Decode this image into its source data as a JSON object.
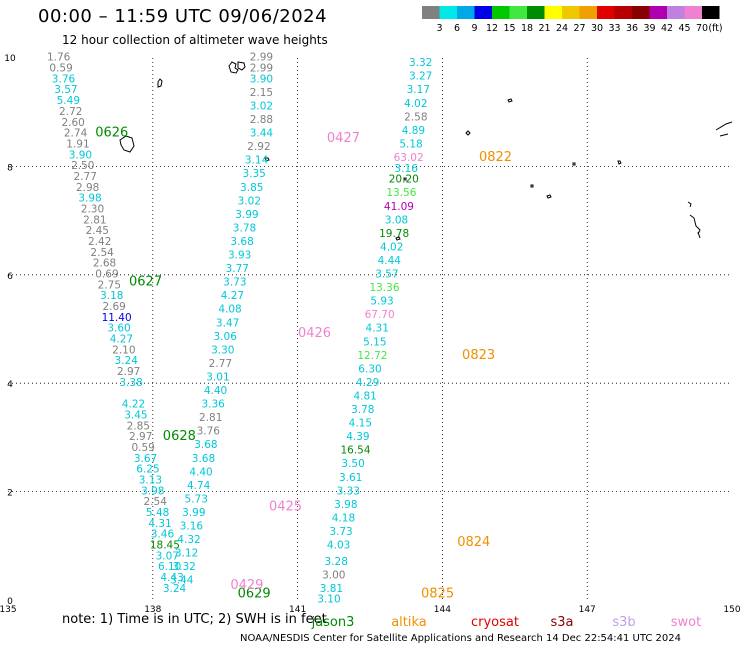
{
  "title": "00:00 – 11:59 UTC 09/06/2024",
  "subtitle": "12 hour collection of altimeter wave heights",
  "colorbar": {
    "colors": [
      "#808080",
      "#00e8e8",
      "#00a8e8",
      "#0000e8",
      "#00c800",
      "#40e840",
      "#008c00",
      "#ffff00",
      "#f0c800",
      "#f0a000",
      "#e00000",
      "#b40000",
      "#880000",
      "#b000b0",
      "#c080e0",
      "#f080d0",
      "#000000"
    ],
    "labels": [
      "3",
      "6",
      "9",
      "12",
      "15",
      "18",
      "21",
      "24",
      "27",
      "30",
      "33",
      "36",
      "39",
      "42",
      "45",
      "70",
      "(ft)"
    ]
  },
  "axes": {
    "x_ticks": [
      "135",
      "138",
      "141",
      "144",
      "147",
      "150"
    ],
    "y_ticks": [
      "0",
      "2",
      "4",
      "6",
      "8",
      "10"
    ]
  },
  "tracks": [
    {
      "date": "0626",
      "color": "#008c00",
      "label_pos": [
        139,
        88.55
      ]
    },
    {
      "date": "0627",
      "color": "#008c00",
      "label_pos": [
        139.3,
        57.8
      ]
    },
    {
      "date": "0628",
      "color": "#008c00",
      "label_pos": [
        140.45,
        37.3
      ]
    },
    {
      "date": "0629",
      "color": "#008c00",
      "label_pos": [
        141.5,
        -0.1
      ]
    },
    {
      "date": "0425",
      "color": "#f080d0",
      "label_pos": [
        140.8,
        52.2
      ]
    },
    {
      "date": "0426",
      "color": "#f080d0",
      "label_pos": [
        141.45,
        39.4
      ]
    },
    {
      "date": "0427",
      "color": "#f080d0",
      "label_pos": [
        141.8,
        26.7
      ]
    },
    {
      "date": "0429",
      "color": "#f080d0",
      "label_pos": [
        140.85,
        0.1
      ]
    },
    {
      "date": "0822",
      "color": "#f09000",
      "label_pos": [
        144.8,
        15.5
      ]
    },
    {
      "date": "0823",
      "color": "#f09000",
      "label_pos": [
        144.6,
        15.45
      ]
    },
    {
      "date": "0824",
      "color": "#f09000",
      "label_pos": [
        144.2,
        2.5
      ]
    },
    {
      "date": "0825",
      "color": "#f09000",
      "label_pos": [
        143.85,
        -0.1
      ]
    }
  ],
  "wave_heights": [
    {
      "v": "1.76",
      "c": "#808080",
      "lon": 136.05,
      "lat": 9.95
    },
    {
      "v": "0.59",
      "c": "#808080",
      "lon": 136.1,
      "lat": 9.75
    },
    {
      "v": "3.76",
      "c": "#00c8d8",
      "lon": 136.15,
      "lat": 9.55
    },
    {
      "v": "3.57",
      "c": "#00c8d8",
      "lon": 136.2,
      "lat": 9.35
    },
    {
      "v": "5.49",
      "c": "#00c8d8",
      "lon": 136.25,
      "lat": 9.15
    },
    {
      "v": "2.72",
      "c": "#808080",
      "lon": 136.3,
      "lat": 8.95
    },
    {
      "v": "2.60",
      "c": "#808080",
      "lon": 136.35,
      "lat": 8.75
    },
    {
      "v": "2.74",
      "c": "#808080",
      "lon": 136.4,
      "lat": 8.55
    },
    {
      "v": "1.91",
      "c": "#808080",
      "lon": 136.45,
      "lat": 8.35
    },
    {
      "v": "3.90",
      "c": "#00c8d8",
      "lon": 136.5,
      "lat": 8.15
    },
    {
      "v": "2.50",
      "c": "#808080",
      "lon": 136.55,
      "lat": 7.95
    },
    {
      "v": "2.77",
      "c": "#808080",
      "lon": 136.6,
      "lat": 7.75
    },
    {
      "v": "2.98",
      "c": "#808080",
      "lon": 136.65,
      "lat": 7.55
    },
    {
      "v": "3.98",
      "c": "#00c8d8",
      "lon": 136.7,
      "lat": 7.35
    },
    {
      "v": "2.30",
      "c": "#808080",
      "lon": 136.75,
      "lat": 7.15
    },
    {
      "v": "2.81",
      "c": "#808080",
      "lon": 136.8,
      "lat": 6.95
    },
    {
      "v": "2.45",
      "c": "#808080",
      "lon": 136.85,
      "lat": 6.75
    },
    {
      "v": "2.42",
      "c": "#808080",
      "lon": 136.9,
      "lat": 6.55
    },
    {
      "v": "2.54",
      "c": "#808080",
      "lon": 136.95,
      "lat": 6.35
    },
    {
      "v": "2.68",
      "c": "#808080",
      "lon": 137.0,
      "lat": 6.15
    },
    {
      "v": "0.69",
      "c": "#808080",
      "lon": 137.05,
      "lat": 5.95
    },
    {
      "v": "2.75",
      "c": "#808080",
      "lon": 137.1,
      "lat": 5.75
    },
    {
      "v": "3.18",
      "c": "#00c8d8",
      "lon": 137.15,
      "lat": 5.55
    },
    {
      "v": "2.69",
      "c": "#808080",
      "lon": 137.2,
      "lat": 5.35
    },
    {
      "v": "11.40",
      "c": "#0000e8",
      "lon": 137.25,
      "lat": 5.15
    },
    {
      "v": "3.60",
      "c": "#00c8d8",
      "lon": 137.3,
      "lat": 4.95
    },
    {
      "v": "4.27",
      "c": "#00c8d8",
      "lon": 137.35,
      "lat": 4.75
    },
    {
      "v": "2.10",
      "c": "#808080",
      "lon": 137.4,
      "lat": 4.55
    },
    {
      "v": "3.24",
      "c": "#00c8d8",
      "lon": 137.45,
      "lat": 4.35
    },
    {
      "v": "2.97",
      "c": "#808080",
      "lon": 137.5,
      "lat": 4.15
    },
    {
      "v": "3.38",
      "c": "#00c8d8",
      "lon": 137.55,
      "lat": 3.95
    },
    {
      "v": "4.22",
      "c": "#00c8d8",
      "lon": 137.6,
      "lat": 3.55
    },
    {
      "v": "3.45",
      "c": "#00c8d8",
      "lon": 137.65,
      "lat": 3.35
    },
    {
      "v": "2.85",
      "c": "#808080",
      "lon": 137.7,
      "lat": 3.15
    },
    {
      "v": "2.97",
      "c": "#808080",
      "lon": 137.75,
      "lat": 2.95
    },
    {
      "v": "0.59",
      "c": "#808080",
      "lon": 137.8,
      "lat": 2.75
    },
    {
      "v": "3.67",
      "c": "#00c8d8",
      "lon": 137.85,
      "lat": 2.55
    },
    {
      "v": "6.25",
      "c": "#00c8d8",
      "lon": 137.9,
      "lat": 2.35
    },
    {
      "v": "3.13",
      "c": "#00c8d8",
      "lon": 137.95,
      "lat": 2.15
    },
    {
      "v": "3.98",
      "c": "#00c8d8",
      "lon": 138.0,
      "lat": 1.95
    },
    {
      "v": "2.54",
      "c": "#808080",
      "lon": 138.05,
      "lat": 1.75
    },
    {
      "v": "5.48",
      "c": "#00c8d8",
      "lon": 138.1,
      "lat": 1.55
    },
    {
      "v": "4.31",
      "c": "#00c8d8",
      "lon": 138.15,
      "lat": 1.35
    },
    {
      "v": "3.46",
      "c": "#00c8d8",
      "lon": 138.2,
      "lat": 1.15
    },
    {
      "v": "18.45",
      "c": "#008c00",
      "lon": 138.25,
      "lat": 0.95
    },
    {
      "v": "3.07",
      "c": "#00c8d8",
      "lon": 138.3,
      "lat": 0.75
    },
    {
      "v": "6.10",
      "c": "#00c8d8",
      "lon": 138.35,
      "lat": 0.55
    },
    {
      "v": "4.43",
      "c": "#00c8d8",
      "lon": 138.4,
      "lat": 0.35
    },
    {
      "v": "3.24",
      "c": "#00c8d8",
      "lon": 138.45,
      "lat": 0.15
    },
    {
      "v": "2.99",
      "c": "#808080",
      "lon": 140.25,
      "lat": 9.95
    },
    {
      "v": "2.99",
      "c": "#808080",
      "lon": 140.25,
      "lat": 9.75
    },
    {
      "v": "3.90",
      "c": "#00c8d8",
      "lon": 140.25,
      "lat": 9.55
    },
    {
      "v": "2.15",
      "c": "#808080",
      "lon": 140.25,
      "lat": 9.3
    },
    {
      "v": "3.02",
      "c": "#00c8d8",
      "lon": 140.25,
      "lat": 9.05
    },
    {
      "v": "2.88",
      "c": "#808080",
      "lon": 140.25,
      "lat": 8.8
    },
    {
      "v": "3.44",
      "c": "#00c8d8",
      "lon": 140.25,
      "lat": 8.55
    },
    {
      "v": "2.92",
      "c": "#808080",
      "lon": 140.2,
      "lat": 8.3
    },
    {
      "v": "3.14",
      "c": "#00c8d8",
      "lon": 140.15,
      "lat": 8.05
    },
    {
      "v": "3.35",
      "c": "#00c8d8",
      "lon": 140.1,
      "lat": 7.8
    },
    {
      "v": "3.85",
      "c": "#00c8d8",
      "lon": 140.05,
      "lat": 7.55
    },
    {
      "v": "3.02",
      "c": "#00c8d8",
      "lon": 140.0,
      "lat": 7.3
    },
    {
      "v": "3.99",
      "c": "#00c8d8",
      "lon": 139.95,
      "lat": 7.05
    },
    {
      "v": "3.78",
      "c": "#00c8d8",
      "lon": 139.9,
      "lat": 6.8
    },
    {
      "v": "3.68",
      "c": "#00c8d8",
      "lon": 139.85,
      "lat": 6.55
    },
    {
      "v": "3.93",
      "c": "#00c8d8",
      "lon": 139.8,
      "lat": 6.3
    },
    {
      "v": "3.77",
      "c": "#00c8d8",
      "lon": 139.75,
      "lat": 6.05
    },
    {
      "v": "3.73",
      "c": "#00c8d8",
      "lon": 139.7,
      "lat": 5.8
    },
    {
      "v": "4.27",
      "c": "#00c8d8",
      "lon": 139.65,
      "lat": 5.55
    },
    {
      "v": "4.08",
      "c": "#00c8d8",
      "lon": 139.6,
      "lat": 5.3
    },
    {
      "v": "3.47",
      "c": "#00c8d8",
      "lon": 139.55,
      "lat": 5.05
    },
    {
      "v": "3.06",
      "c": "#00c8d8",
      "lon": 139.5,
      "lat": 4.8
    },
    {
      "v": "3.30",
      "c": "#00c8d8",
      "lon": 139.45,
      "lat": 4.55
    },
    {
      "v": "2.77",
      "c": "#808080",
      "lon": 139.4,
      "lat": 4.3
    },
    {
      "v": "3.01",
      "c": "#00c8d8",
      "lon": 139.35,
      "lat": 4.05
    },
    {
      "v": "4.40",
      "c": "#00c8d8",
      "lon": 139.3,
      "lat": 3.8
    },
    {
      "v": "3.36",
      "c": "#00c8d8",
      "lon": 139.25,
      "lat": 3.55
    },
    {
      "v": "2.81",
      "c": "#808080",
      "lon": 139.2,
      "lat": 3.3
    },
    {
      "v": "3.76",
      "c": "#808080",
      "lon": 139.15,
      "lat": 3.05
    },
    {
      "v": "3.68",
      "c": "#00c8d8",
      "lon": 139.1,
      "lat": 2.8
    },
    {
      "v": "3.68",
      "c": "#00c8d8",
      "lon": 139.05,
      "lat": 2.55
    },
    {
      "v": "4.40",
      "c": "#00c8d8",
      "lon": 139.0,
      "lat": 2.3
    },
    {
      "v": "4.74",
      "c": "#00c8d8",
      "lon": 138.95,
      "lat": 2.05
    },
    {
      "v": "5.73",
      "c": "#00c8d8",
      "lon": 138.9,
      "lat": 1.8
    },
    {
      "v": "3.99",
      "c": "#00c8d8",
      "lon": 138.85,
      "lat": 1.55
    },
    {
      "v": "3.16",
      "c": "#00c8d8",
      "lon": 138.8,
      "lat": 1.3
    },
    {
      "v": "4.32",
      "c": "#00c8d8",
      "lon": 138.75,
      "lat": 1.05
    },
    {
      "v": "3.12",
      "c": "#00c8d8",
      "lon": 138.7,
      "lat": 0.8
    },
    {
      "v": "3.32",
      "c": "#00c8d8",
      "lon": 138.65,
      "lat": 0.55
    },
    {
      "v": "3.44",
      "c": "#00c8d8",
      "lon": 138.6,
      "lat": 0.3
    },
    {
      "v": "3.32",
      "c": "#00c8d8",
      "lon": 143.55,
      "lat": 9.85
    },
    {
      "v": "3.27",
      "c": "#00c8d8",
      "lon": 143.55,
      "lat": 9.6
    },
    {
      "v": "3.17",
      "c": "#00c8d8",
      "lon": 143.5,
      "lat": 9.35
    },
    {
      "v": "4.02",
      "c": "#00c8d8",
      "lon": 143.45,
      "lat": 9.1
    },
    {
      "v": "2.58",
      "c": "#808080",
      "lon": 143.45,
      "lat": 8.85
    },
    {
      "v": "4.89",
      "c": "#00c8d8",
      "lon": 143.4,
      "lat": 8.6
    },
    {
      "v": "5.18",
      "c": "#00c8d8",
      "lon": 143.35,
      "lat": 8.35
    },
    {
      "v": "63.02",
      "c": "#f080d0",
      "lon": 143.3,
      "lat": 8.1
    },
    {
      "v": "3.16",
      "c": "#00c8d8",
      "lon": 143.25,
      "lat": 7.9
    },
    {
      "v": "20.20",
      "c": "#008c00",
      "lon": 143.2,
      "lat": 7.7
    },
    {
      "v": "13.56",
      "c": "#40e840",
      "lon": 143.15,
      "lat": 7.45
    },
    {
      "v": "41.09",
      "c": "#b000b0",
      "lon": 143.1,
      "lat": 7.2
    },
    {
      "v": "3.08",
      "c": "#00c8d8",
      "lon": 143.05,
      "lat": 6.95
    },
    {
      "v": "19.78",
      "c": "#008c00",
      "lon": 143.0,
      "lat": 6.7
    },
    {
      "v": "4.02",
      "c": "#00c8d8",
      "lon": 142.95,
      "lat": 6.45
    },
    {
      "v": "4.44",
      "c": "#00c8d8",
      "lon": 142.9,
      "lat": 6.2
    },
    {
      "v": "3.57",
      "c": "#00c8d8",
      "lon": 142.85,
      "lat": 5.95
    },
    {
      "v": "13.36",
      "c": "#40e840",
      "lon": 142.8,
      "lat": 5.7
    },
    {
      "v": "5.93",
      "c": "#00c8d8",
      "lon": 142.75,
      "lat": 5.45
    },
    {
      "v": "67.70",
      "c": "#f080d0",
      "lon": 142.7,
      "lat": 5.2
    },
    {
      "v": "4.31",
      "c": "#00c8d8",
      "lon": 142.65,
      "lat": 4.95
    },
    {
      "v": "5.15",
      "c": "#00c8d8",
      "lon": 142.6,
      "lat": 4.7
    },
    {
      "v": "12.72",
      "c": "#40e840",
      "lon": 142.55,
      "lat": 4.45
    },
    {
      "v": "6.30",
      "c": "#00c8d8",
      "lon": 142.5,
      "lat": 4.2
    },
    {
      "v": "4.29",
      "c": "#00c8d8",
      "lon": 142.45,
      "lat": 3.95
    },
    {
      "v": "4.81",
      "c": "#00c8d8",
      "lon": 142.4,
      "lat": 3.7
    },
    {
      "v": "3.78",
      "c": "#00c8d8",
      "lon": 142.35,
      "lat": 3.45
    },
    {
      "v": "4.15",
      "c": "#00c8d8",
      "lon": 142.3,
      "lat": 3.2
    },
    {
      "v": "4.39",
      "c": "#00c8d8",
      "lon": 142.25,
      "lat": 2.95
    },
    {
      "v": "16.54",
      "c": "#008c00",
      "lon": 142.2,
      "lat": 2.7
    },
    {
      "v": "3.50",
      "c": "#00c8d8",
      "lon": 142.15,
      "lat": 2.45
    },
    {
      "v": "3.61",
      "c": "#00c8d8",
      "lon": 142.1,
      "lat": 2.2
    },
    {
      "v": "3.33",
      "c": "#00c8d8",
      "lon": 142.05,
      "lat": 1.95
    },
    {
      "v": "3.98",
      "c": "#00c8d8",
      "lon": 142.0,
      "lat": 1.7
    },
    {
      "v": "4.18",
      "c": "#00c8d8",
      "lon": 141.95,
      "lat": 1.45
    },
    {
      "v": "3.73",
      "c": "#00c8d8",
      "lon": 141.9,
      "lat": 1.2
    },
    {
      "v": "4.03",
      "c": "#00c8d8",
      "lon": 141.85,
      "lat": 0.95
    },
    {
      "v": "3.28",
      "c": "#00c8d8",
      "lon": 141.8,
      "lat": 0.65
    },
    {
      "v": "3.00",
      "c": "#808080",
      "lon": 141.75,
      "lat": 0.4
    },
    {
      "v": "3.81",
      "c": "#00c8d8",
      "lon": 141.7,
      "lat": 0.15
    },
    {
      "v": "3.10",
      "c": "#00c8d8",
      "lon": 141.65,
      "lat": -0.05
    }
  ],
  "note": "note:  1) Time is in UTC;  2) SWH is in feet",
  "satellites": [
    {
      "name": "jason3",
      "color": "#008c00"
    },
    {
      "name": "altika",
      "color": "#f09000"
    },
    {
      "name": "cryosat",
      "color": "#e00000"
    },
    {
      "name": "s3a",
      "color": "#880000"
    },
    {
      "name": "s3b",
      "color": "#c0a0e8"
    },
    {
      "name": "swot",
      "color": "#f080d0"
    }
  ],
  "credit": "NOAA/NESDIS Center for Satellite Applications and Research    14 Dec 22:54:41 UTC 2024"
}
